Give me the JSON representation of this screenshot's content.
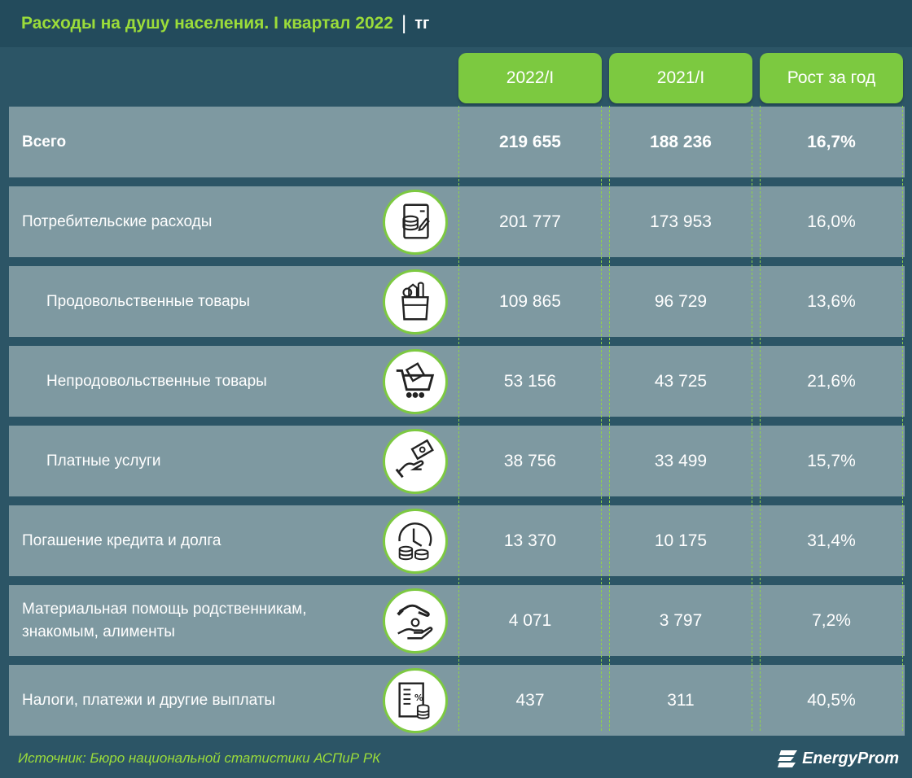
{
  "header": {
    "title": "Расходы на душу населения. I квартал 2022",
    "separator": "|",
    "unit": "тг"
  },
  "chart_data": {
    "type": "table",
    "title": "Расходы на душу населения. I квартал 2022",
    "unit": "тг",
    "columns": [
      "2022/I",
      "2021/I",
      "Рост за год"
    ],
    "rows": [
      {
        "label": "Всего",
        "values": [
          "219 655",
          "188 236",
          "16,7%"
        ],
        "bold": true,
        "indent": false,
        "icon": "none"
      },
      {
        "label": "Потребительские расходы",
        "values": [
          "201 777",
          "173 953",
          "16,0%"
        ],
        "bold": false,
        "indent": false,
        "icon": "receipt-icon"
      },
      {
        "label": "Продовольственные товары",
        "values": [
          "109 865",
          "96 729",
          "13,6%"
        ],
        "bold": false,
        "indent": true,
        "icon": "grocery-bag-icon"
      },
      {
        "label": "Непродовольственные товары",
        "values": [
          "53 156",
          "43 725",
          "21,6%"
        ],
        "bold": false,
        "indent": true,
        "icon": "shopping-cart-icon"
      },
      {
        "label": "Платные услуги",
        "values": [
          "38 756",
          "33 499",
          "15,7%"
        ],
        "bold": false,
        "indent": true,
        "icon": "hand-money-icon"
      },
      {
        "label": "Погашение кредита и долга",
        "values": [
          "13 370",
          "10 175",
          "31,4%"
        ],
        "bold": false,
        "indent": false,
        "icon": "clock-coins-icon"
      },
      {
        "label": "Материальная помощь родственникам,\nзнакомым, алименты",
        "values": [
          "4 071",
          "3 797",
          "7,2%"
        ],
        "bold": false,
        "indent": false,
        "icon": "helping-hands-icon"
      },
      {
        "label": "Налоги, платежи и другие выплаты",
        "values": [
          "437",
          "311",
          "40,5%"
        ],
        "bold": false,
        "indent": false,
        "icon": "tax-document-icon"
      }
    ]
  },
  "footer": {
    "source": "Источник: Бюро национальной статистики АСПиР РК",
    "logo_text": "EnergyProm"
  },
  "colors": {
    "background": "#2c5566",
    "row": "#7e99a1",
    "accent_green": "#7cc940",
    "title_green": "#9bdc3a"
  }
}
